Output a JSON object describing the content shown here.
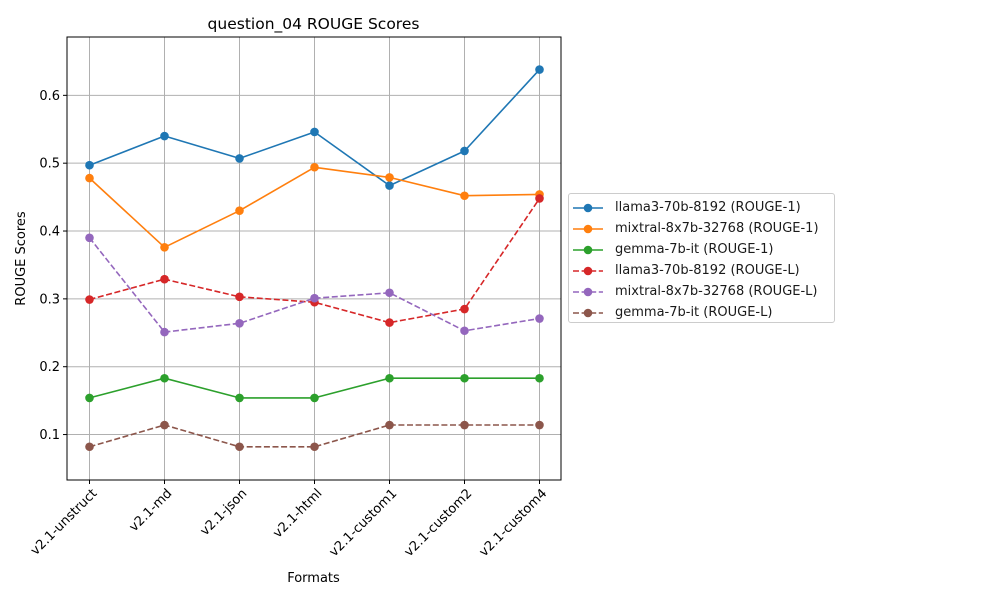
{
  "chart_data": {
    "type": "line",
    "title": "question_04 ROUGE Scores",
    "xlabel": "Formats",
    "ylabel": "ROUGE Scores",
    "categories": [
      "v2.1-unstruct",
      "v2.1-md",
      "v2.1-json",
      "v2.1-html",
      "v2.1-custom1",
      "v2.1-custom2",
      "v2.1-custom4"
    ],
    "ylim": [
      0.033,
      0.686
    ],
    "yticks": [
      "0.1",
      "0.2",
      "0.3",
      "0.4",
      "0.5",
      "0.6"
    ],
    "grid": true,
    "legend_position": "center-right outside",
    "series": [
      {
        "name": "llama3-70b-8192 (ROUGE-1)",
        "color": "#1f77b4",
        "dash": "solid",
        "values": [
          0.497,
          0.54,
          0.507,
          0.546,
          0.467,
          0.518,
          0.638
        ]
      },
      {
        "name": "mixtral-8x7b-32768 (ROUGE-1)",
        "color": "#ff7f0e",
        "dash": "solid",
        "values": [
          0.478,
          0.376,
          0.43,
          0.494,
          0.479,
          0.452,
          0.454
        ]
      },
      {
        "name": "gemma-7b-it (ROUGE-1)",
        "color": "#2ca02c",
        "dash": "solid",
        "values": [
          0.154,
          0.183,
          0.154,
          0.154,
          0.183,
          0.183,
          0.183
        ]
      },
      {
        "name": "llama3-70b-8192 (ROUGE-L)",
        "color": "#d62728",
        "dash": "dashed",
        "values": [
          0.299,
          0.329,
          0.303,
          0.295,
          0.265,
          0.285,
          0.448
        ]
      },
      {
        "name": "mixtral-8x7b-32768 (ROUGE-L)",
        "color": "#9467bd",
        "dash": "dashed",
        "values": [
          0.39,
          0.251,
          0.264,
          0.301,
          0.309,
          0.253,
          0.271
        ]
      },
      {
        "name": "gemma-7b-it (ROUGE-L)",
        "color": "#8c564b",
        "dash": "dashed",
        "values": [
          0.082,
          0.114,
          0.082,
          0.082,
          0.114,
          0.114,
          0.114
        ]
      }
    ]
  }
}
